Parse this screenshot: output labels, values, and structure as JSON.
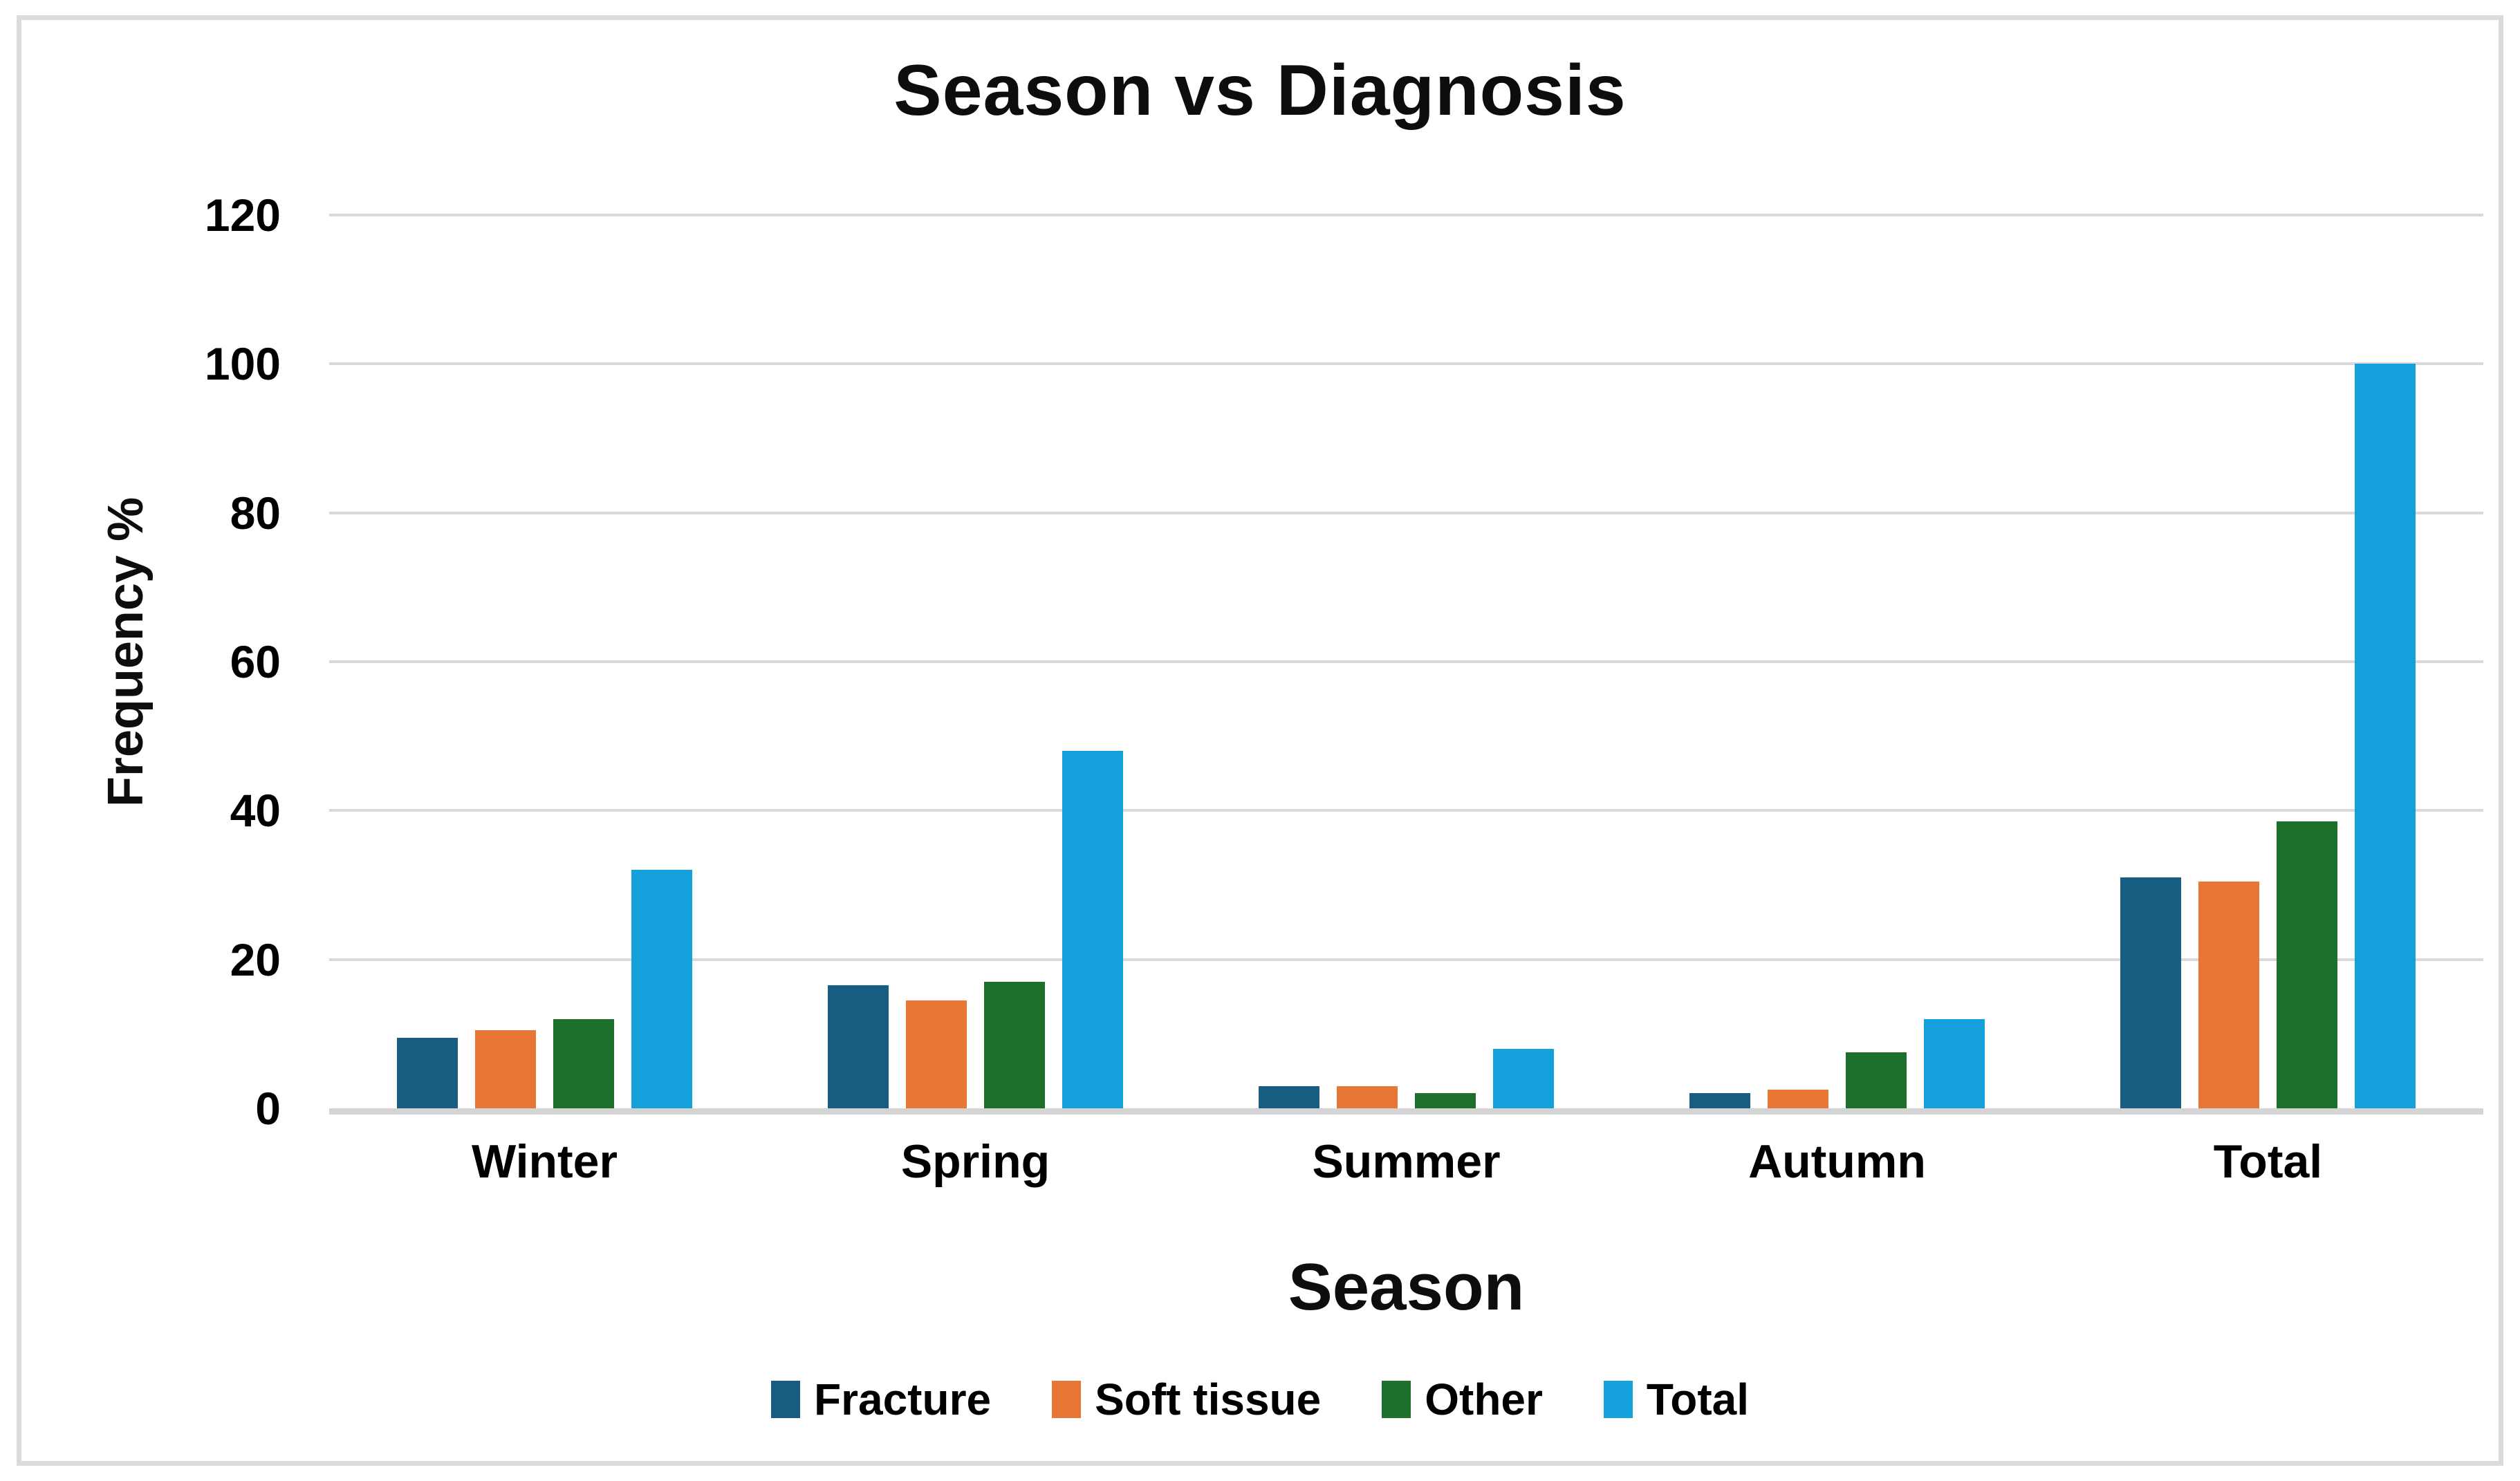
{
  "page": {
    "background": "#ffffff",
    "frame_border_color": "#DBDBDB"
  },
  "chart_data": {
    "type": "bar",
    "title": "Season vs Diagnosis",
    "xlabel": "Season",
    "ylabel": "Frequency %",
    "categories": [
      "Winter",
      "Spring",
      "Summer",
      "Autumn",
      "Total"
    ],
    "series": [
      {
        "name": "Fracture",
        "color": "#175E82",
        "values": [
          9.5,
          16.5,
          3,
          2,
          31
        ]
      },
      {
        "name": "Soft tissue",
        "color": "#E87634",
        "values": [
          10.5,
          14.5,
          3,
          2.5,
          30.5
        ]
      },
      {
        "name": "Other",
        "color": "#1D6F2B",
        "values": [
          12,
          17,
          2,
          7.5,
          38.5
        ]
      },
      {
        "name": "Total",
        "color": "#14A0DB",
        "values": [
          32,
          48,
          8,
          12,
          100
        ]
      }
    ],
    "ylim": [
      0,
      120
    ],
    "yticks": [
      0,
      20,
      40,
      60,
      80,
      100,
      120
    ],
    "grid": true,
    "gridline_color": "#D9D9D9",
    "axisline_color": "#D4D4D4",
    "legend_position": "bottom"
  }
}
